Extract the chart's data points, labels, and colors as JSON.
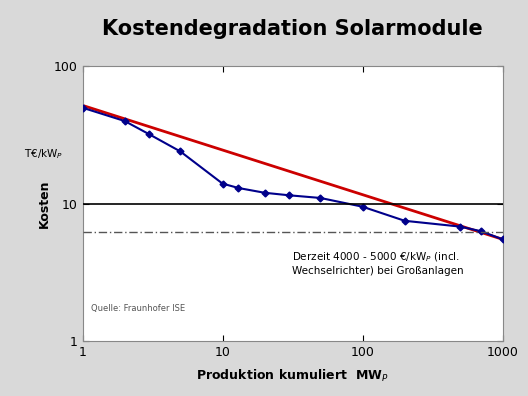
{
  "title": "Kostendegradation Solarmodule",
  "ylabel_main": "Kosten",
  "source": "Quelle: Fraunhofer ISE",
  "xlim": [
    1,
    1000
  ],
  "ylim": [
    1,
    100
  ],
  "hline_y": 10,
  "dash_line_y": 6.2,
  "blue_x": [
    1,
    2,
    3,
    5,
    10,
    13,
    20,
    30,
    50,
    100,
    200,
    500,
    700,
    1000
  ],
  "blue_y": [
    50,
    40,
    32,
    24,
    14,
    13,
    12,
    11.5,
    11,
    9.5,
    7.5,
    6.8,
    6.3,
    5.5
  ],
  "red_x": [
    1,
    1000
  ],
  "red_y": [
    52,
    5.5
  ],
  "bg_color": "#d9d9d9",
  "plot_bg": "#ffffff",
  "blue_color": "#00008B",
  "red_color": "#CC0000",
  "hline_color": "#000000",
  "dash_color": "#555555",
  "left_yellow": "#F5C400",
  "left_blue": "#2050A0",
  "title_fontsize": 15,
  "axis_label_fontsize": 9,
  "tick_fontsize": 9,
  "annotation": "Derzeit 4000 - 5000 €/kWₚ (incl.\nWechselrichter) bei Großanlagen",
  "xlabel": "Produktion kumuliert  MWₚ"
}
